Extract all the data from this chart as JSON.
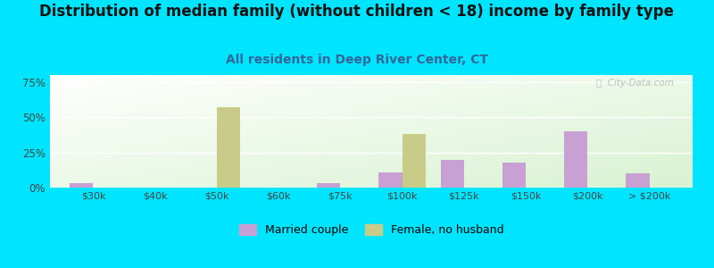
{
  "title": "Distribution of median family (without children < 18) income by family type",
  "subtitle": "All residents in Deep River Center, CT",
  "categories": [
    "$30k",
    "$40k",
    "$50k",
    "$60k",
    "$75k",
    "$100k",
    "$125k",
    "$150k",
    "$200k",
    "> $200k"
  ],
  "married_couple": [
    3,
    0,
    0,
    0,
    3,
    11,
    20,
    18,
    40,
    10
  ],
  "female_no_husband": [
    0,
    0,
    57,
    0,
    0,
    38,
    0,
    0,
    0,
    0
  ],
  "married_color": "#c8a0d4",
  "female_color": "#c8cc88",
  "background_color": "#00e5ff",
  "yticks": [
    0,
    25,
    50,
    75
  ],
  "ylim": [
    0,
    80
  ],
  "bar_width": 0.38,
  "title_fontsize": 12,
  "subtitle_fontsize": 10,
  "legend_labels": [
    "Married couple",
    "Female, no husband"
  ],
  "watermark": "ⓘ  City-Data.com"
}
